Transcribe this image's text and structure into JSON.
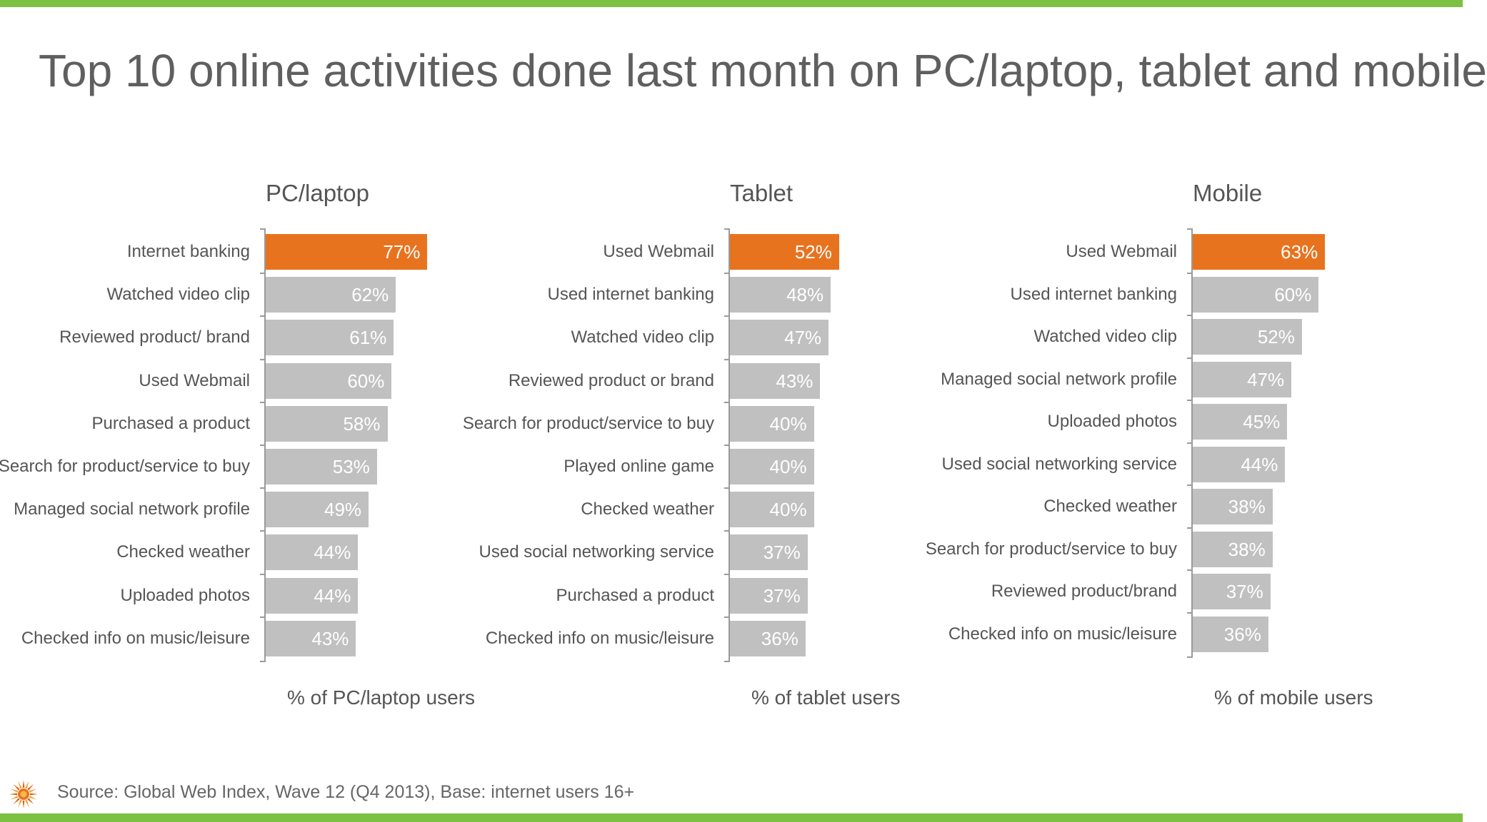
{
  "page": {
    "title": "Top 10 online activities done last month on PC/laptop, tablet and mobile",
    "source": "Source: Global Web Index, Wave 12 (Q4 2013), Base: internet users 16+",
    "logo_icon": "sun-logo-icon"
  },
  "colors": {
    "accent_green": "#7dc142",
    "highlight_orange": "#e8731f",
    "bar_grey": "#c0c0c0",
    "axis_grey": "#9a9a9a",
    "text_grey": "#555555"
  },
  "chart_data": [
    {
      "type": "bar",
      "orientation": "horizontal",
      "title": "PC/laptop",
      "xlabel": "% of PC/laptop users",
      "ylabel": "",
      "categories": [
        "Internet banking",
        "Watched video clip",
        "Reviewed product/ brand",
        "Used Webmail",
        "Purchased a product",
        "Search for product/service to buy",
        "Managed social network profile",
        "Checked weather",
        "Uploaded photos",
        "Checked info on music/leisure"
      ],
      "values": [
        77,
        62,
        61,
        60,
        58,
        53,
        49,
        44,
        44,
        43
      ],
      "value_labels": [
        "77%",
        "62%",
        "61%",
        "60%",
        "58%",
        "53%",
        "49%",
        "44%",
        "44%",
        "43%"
      ],
      "highlight_index": 0
    },
    {
      "type": "bar",
      "orientation": "horizontal",
      "title": "Tablet",
      "xlabel": "% of tablet users",
      "ylabel": "",
      "categories": [
        "Used Webmail",
        "Used internet banking",
        "Watched video clip",
        "Reviewed product or brand",
        "Search for product/service to buy",
        "Played online game",
        "Checked weather",
        "Used social networking service",
        "Purchased a product",
        "Checked info on music/leisure"
      ],
      "values": [
        52,
        48,
        47,
        43,
        40,
        40,
        40,
        37,
        37,
        36
      ],
      "value_labels": [
        "52%",
        "48%",
        "47%",
        "43%",
        "40%",
        "40%",
        "40%",
        "37%",
        "37%",
        "36%"
      ],
      "highlight_index": 0
    },
    {
      "type": "bar",
      "orientation": "horizontal",
      "title": "Mobile",
      "xlabel": "% of mobile users",
      "ylabel": "",
      "categories": [
        "Used Webmail",
        "Used internet banking",
        "Watched video clip",
        "Managed social network profile",
        "Uploaded photos",
        "Used social networking service",
        "Checked weather",
        "Search for product/service to buy",
        "Reviewed product/brand",
        "Checked info on music/leisure"
      ],
      "values": [
        63,
        60,
        52,
        47,
        45,
        44,
        38,
        38,
        37,
        36
      ],
      "value_labels": [
        "63%",
        "60%",
        "52%",
        "47%",
        "45%",
        "44%",
        "38%",
        "38%",
        "37%",
        "36%"
      ],
      "highlight_index": 0
    }
  ]
}
